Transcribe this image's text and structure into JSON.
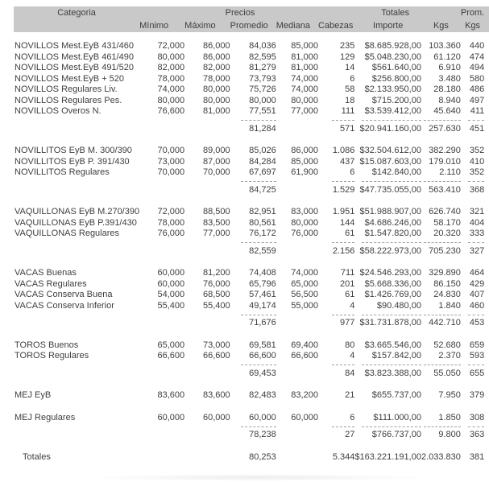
{
  "colors": {
    "header_bg": "#c9c9c9",
    "text": "#3e3e3e",
    "dash": "#9e9e9e"
  },
  "header": {
    "categoria": "Categoria",
    "precios": "Precios",
    "totales": "Totales",
    "prom": "Prom.",
    "minimo": "Mínimo",
    "maximo": "Máximo",
    "promedio": "Promedio",
    "mediana": "Mediana",
    "cabezas": "Cabezas",
    "importe": "Importe",
    "kgs": "Kgs",
    "kgs2": "Kgs"
  },
  "sections": [
    {
      "name": "NOVILLOS",
      "rows": [
        {
          "categoria": "NOVILLOS Mest.EyB 431/460",
          "minimo": "72,000",
          "maximo": "86,000",
          "promedio": "84,036",
          "mediana": "85,000",
          "cabezas": "235",
          "importe": "$8.685.928,00",
          "kgs": "103.360",
          "prom_kgs": "440"
        },
        {
          "categoria": "NOVILLOS Mest.EyB 461/490",
          "minimo": "80,000",
          "maximo": "86,000",
          "promedio": "82,595",
          "mediana": "81,000",
          "cabezas": "129",
          "importe": "$5.048.230,00",
          "kgs": "61.120",
          "prom_kgs": "474"
        },
        {
          "categoria": "NOVILLOS Mest.EyB 491/520",
          "minimo": "82,000",
          "maximo": "82,000",
          "promedio": "81,279",
          "mediana": "81,000",
          "cabezas": "14",
          "importe": "$561.640,00",
          "kgs": "6.910",
          "prom_kgs": "494"
        },
        {
          "categoria": "NOVILLOS Mest.EyB + 520",
          "minimo": "78,000",
          "maximo": "78,000",
          "promedio": "73,793",
          "mediana": "74,000",
          "cabezas": "6",
          "importe": "$256.800,00",
          "kgs": "3.480",
          "prom_kgs": "580"
        },
        {
          "categoria": "NOVILLOS Regulares Liv.",
          "minimo": "74,000",
          "maximo": "80,000",
          "promedio": "75,726",
          "mediana": "74,000",
          "cabezas": "58",
          "importe": "$2.133.950,00",
          "kgs": "28.180",
          "prom_kgs": "486"
        },
        {
          "categoria": "NOVILLOS Regulares Pes.",
          "minimo": "80,000",
          "maximo": "80,000",
          "promedio": "80,000",
          "mediana": "80,000",
          "cabezas": "18",
          "importe": "$715.200,00",
          "kgs": "8.940",
          "prom_kgs": "497"
        },
        {
          "categoria": "NOVILLOS Overos N.",
          "minimo": "76,600",
          "maximo": "81,000",
          "promedio": "77,551",
          "mediana": "77,000",
          "cabezas": "111",
          "importe": "$3.539.412,00",
          "kgs": "45.640",
          "prom_kgs": "411"
        }
      ],
      "subtotal": {
        "promedio": "81,284",
        "cabezas": "571",
        "importe": "$20.941.160,00",
        "kgs": "257.630",
        "prom_kgs": "451"
      }
    },
    {
      "name": "NOVILLITOS",
      "rows": [
        {
          "categoria": "NOVILLITOS EyB M. 300/390",
          "minimo": "70,000",
          "maximo": "89,000",
          "promedio": "85,026",
          "mediana": "86,000",
          "cabezas": "1.086",
          "importe": "$32.504.612,00",
          "kgs": "382.290",
          "prom_kgs": "352"
        },
        {
          "categoria": "NOVILLITOS EyB P. 391/430",
          "minimo": "73,000",
          "maximo": "87,000",
          "promedio": "84,284",
          "mediana": "85,000",
          "cabezas": "437",
          "importe": "$15.087.603,00",
          "kgs": "179.010",
          "prom_kgs": "410"
        },
        {
          "categoria": "NOVILLITOS Regulares",
          "minimo": "70,000",
          "maximo": "70,000",
          "promedio": "67,697",
          "mediana": "61,900",
          "cabezas": "6",
          "importe": "$142.840,00",
          "kgs": "2.110",
          "prom_kgs": "352"
        }
      ],
      "subtotal": {
        "promedio": "84,725",
        "cabezas": "1.529",
        "importe": "$47.735.055,00",
        "kgs": "563.410",
        "prom_kgs": "368"
      }
    },
    {
      "name": "VAQUILLONAS",
      "rows": [
        {
          "categoria": "VAQUILLONAS EyB M.270/390",
          "minimo": "72,000",
          "maximo": "88,500",
          "promedio": "82,951",
          "mediana": "83,000",
          "cabezas": "1.951",
          "importe": "$51.988.907,00",
          "kgs": "626.740",
          "prom_kgs": "321"
        },
        {
          "categoria": "VAQUILLONAS EyB P.391/430",
          "minimo": "78,000",
          "maximo": "83,500",
          "promedio": "80,561",
          "mediana": "80,000",
          "cabezas": "144",
          "importe": "$4.686.246,00",
          "kgs": "58.170",
          "prom_kgs": "404"
        },
        {
          "categoria": "VAQUILLONAS Regulares",
          "minimo": "76,000",
          "maximo": "77,000",
          "promedio": "76,172",
          "mediana": "76,000",
          "cabezas": "61",
          "importe": "$1.547.820,00",
          "kgs": "20.320",
          "prom_kgs": "333"
        }
      ],
      "subtotal": {
        "promedio": "82,559",
        "cabezas": "2.156",
        "importe": "$58.222.973,00",
        "kgs": "705.230",
        "prom_kgs": "327"
      }
    },
    {
      "name": "VACAS",
      "rows": [
        {
          "categoria": "VACAS Buenas",
          "minimo": "60,000",
          "maximo": "81,200",
          "promedio": "74,408",
          "mediana": "74,000",
          "cabezas": "711",
          "importe": "$24.546.293,00",
          "kgs": "329.890",
          "prom_kgs": "464"
        },
        {
          "categoria": "VACAS Regulares",
          "minimo": "60,000",
          "maximo": "76,000",
          "promedio": "65,796",
          "mediana": "65,000",
          "cabezas": "201",
          "importe": "$5.668.336,00",
          "kgs": "86.150",
          "prom_kgs": "429"
        },
        {
          "categoria": "VACAS Conserva Buena",
          "minimo": "54,000",
          "maximo": "68,500",
          "promedio": "57,461",
          "mediana": "56,500",
          "cabezas": "61",
          "importe": "$1.426.769,00",
          "kgs": "24.830",
          "prom_kgs": "407"
        },
        {
          "categoria": "VACAS Conserva Inferior",
          "minimo": "55,400",
          "maximo": "55,400",
          "promedio": "49,174",
          "mediana": "55,000",
          "cabezas": "4",
          "importe": "$90.480,00",
          "kgs": "1.840",
          "prom_kgs": "460"
        }
      ],
      "subtotal": {
        "promedio": "71,676",
        "cabezas": "977",
        "importe": "$31.731.878,00",
        "kgs": "442.710",
        "prom_kgs": "453"
      }
    },
    {
      "name": "TOROS",
      "rows": [
        {
          "categoria": "TOROS Buenos",
          "minimo": "65,000",
          "maximo": "73,000",
          "promedio": "69,581",
          "mediana": "69,400",
          "cabezas": "80",
          "importe": "$3.665.546,00",
          "kgs": "52.680",
          "prom_kgs": "659"
        },
        {
          "categoria": "TOROS Regulares",
          "minimo": "66,600",
          "maximo": "66,600",
          "promedio": "66,600",
          "mediana": "66,600",
          "cabezas": "4",
          "importe": "$157.842,00",
          "kgs": "2.370",
          "prom_kgs": "593"
        }
      ],
      "subtotal": {
        "promedio": "69,453",
        "cabezas": "84",
        "importe": "$3.823.388,00",
        "kgs": "55.050",
        "prom_kgs": "655"
      }
    },
    {
      "name": "MEJ",
      "rows": [
        {
          "categoria": "MEJ EyB",
          "minimo": "83,600",
          "maximo": "83,600",
          "promedio": "82,483",
          "mediana": "83,200",
          "cabezas": "21",
          "importe": "$655.737,00",
          "kgs": "7.950",
          "prom_kgs": "379",
          "spacer_after": true
        },
        {
          "categoria": "MEJ Regulares",
          "minimo": "60,000",
          "maximo": "60,000",
          "promedio": "60,000",
          "mediana": "60,000",
          "cabezas": "6",
          "importe": "$111.000,00",
          "kgs": "1.850",
          "prom_kgs": "308"
        }
      ],
      "subtotal": {
        "promedio": "78,238",
        "cabezas": "27",
        "importe": "$766.737,00",
        "kgs": "9.800",
        "prom_kgs": "363"
      }
    }
  ],
  "totals": {
    "label": "Totales",
    "promedio": "80,253",
    "cabezas": "5.344",
    "importe": "$163.221.191,00",
    "kgs": "2.033.830",
    "prom_kgs": "381"
  }
}
